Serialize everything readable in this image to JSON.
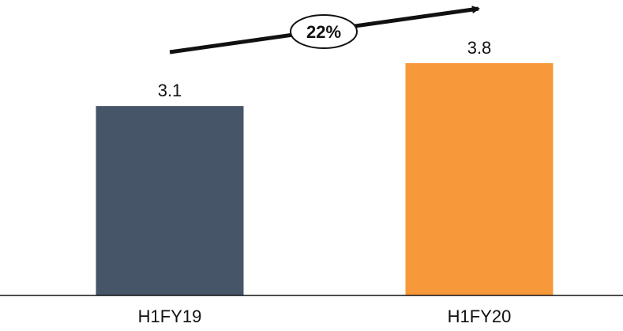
{
  "chart_data": {
    "type": "bar",
    "categories": [
      "H1FY19",
      "H1FY20"
    ],
    "values": [
      3.1,
      3.8
    ],
    "data_labels": [
      "3.1",
      "3.8"
    ],
    "colors": [
      "#475569",
      "#F7993A"
    ],
    "ylim": [
      0,
      3.8
    ],
    "grid": false,
    "legend": "none",
    "annotation": {
      "type": "growth-arrow",
      "text": "22%"
    }
  }
}
